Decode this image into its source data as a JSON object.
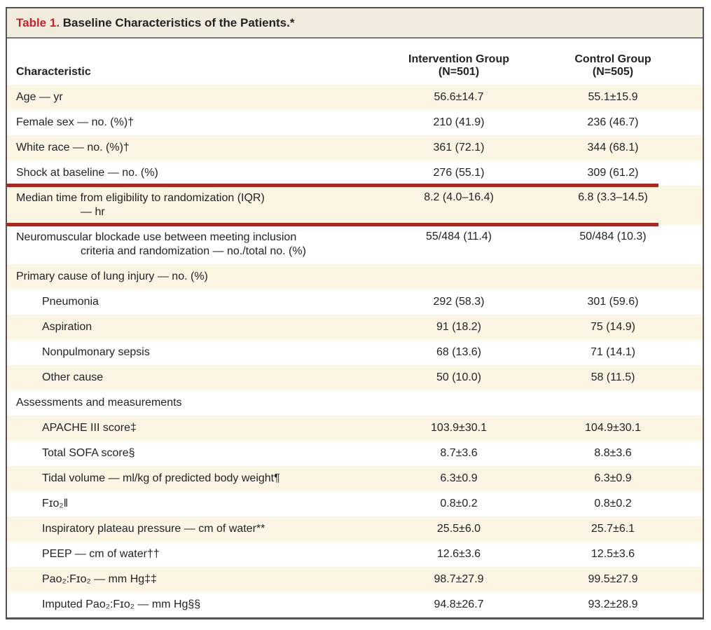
{
  "colors": {
    "accent_red": "#d01f2a",
    "rule_red": "#a42a22",
    "stripe_cream": "#fcf5e3",
    "titlebar_bg": "#f2ecdf",
    "border_dark": "#525257",
    "divider_gray": "#76777b",
    "text_dark": "#232227"
  },
  "table": {
    "label": "Table 1.",
    "title": "Baseline Characteristics of the Patients.*",
    "header": {
      "characteristic": "Characteristic",
      "group1_line1": "Intervention Group",
      "group1_line2": "(N=501)",
      "group2_line1": "Control Group",
      "group2_line2": "(N=505)"
    },
    "rows": [
      {
        "label": "Age — yr",
        "indent": 0,
        "intervention": "56.6±14.7",
        "control": "55.1±15.9"
      },
      {
        "label": "Female sex — no. (%)†",
        "indent": 0,
        "intervention": "210 (41.9)",
        "control": "236 (46.7)"
      },
      {
        "label": "White race — no. (%)†",
        "indent": 0,
        "intervention": "361 (72.1)",
        "control": "344 (68.1)"
      },
      {
        "label": "Shock at baseline — no. (%)",
        "indent": 0,
        "intervention": "276 (55.1)",
        "control": "309 (61.2)"
      },
      {
        "label": "Median time from eligibility to randomization (IQR)",
        "label2": "— hr",
        "indent": 0,
        "intervention": "8.2 (4.0–16.4)",
        "control": "6.8 (3.3–14.5)",
        "highlighted": true
      },
      {
        "label": "Neuromuscular blockade use between meeting inclusion",
        "label2": "criteria and randomization — no./total no. (%)",
        "indent": 0,
        "intervention": "55/484 (11.4)",
        "control": "50/484 (10.3)"
      },
      {
        "label": "Primary cause of lung injury — no. (%)",
        "indent": 0,
        "intervention": "",
        "control": ""
      },
      {
        "label": "Pneumonia",
        "indent": 1,
        "intervention": "292 (58.3)",
        "control": "301 (59.6)"
      },
      {
        "label": "Aspiration",
        "indent": 1,
        "intervention": "91 (18.2)",
        "control": "75 (14.9)"
      },
      {
        "label": "Nonpulmonary sepsis",
        "indent": 1,
        "intervention": "68 (13.6)",
        "control": "71 (14.1)"
      },
      {
        "label": "Other cause",
        "indent": 1,
        "intervention": "50 (10.0)",
        "control": "58 (11.5)"
      },
      {
        "label": "Assessments and measurements",
        "indent": 0,
        "intervention": "",
        "control": ""
      },
      {
        "label": "APACHE III score‡",
        "indent": 1,
        "intervention": "103.9±30.1",
        "control": "104.9±30.1"
      },
      {
        "label": "Total SOFA score§",
        "indent": 1,
        "intervention": "8.7±3.6",
        "control": "8.8±3.6"
      },
      {
        "label": "Tidal volume — ml/kg of predicted body weight¶",
        "indent": 1,
        "intervention": "6.3±0.9",
        "control": "6.3±0.9"
      },
      {
        "label": "Fɪᴏ₂‖",
        "indent": 1,
        "intervention": "0.8±0.2",
        "control": "0.8±0.2"
      },
      {
        "label": "Inspiratory plateau pressure — cm of water**",
        "indent": 1,
        "intervention": "25.5±6.0",
        "control": "25.7±6.1"
      },
      {
        "label": "PEEP — cm of water††",
        "indent": 1,
        "intervention": "12.6±3.6",
        "control": "12.5±3.6"
      },
      {
        "label": "Paᴏ₂:Fɪᴏ₂ — mm Hg‡‡",
        "indent": 1,
        "intervention": "98.7±27.9",
        "control": "99.5±27.9"
      },
      {
        "label": "Imputed Paᴏ₂:Fɪᴏ₂ — mm Hg§§",
        "indent": 1,
        "intervention": "94.8±26.7",
        "control": "93.2±28.9"
      }
    ]
  }
}
